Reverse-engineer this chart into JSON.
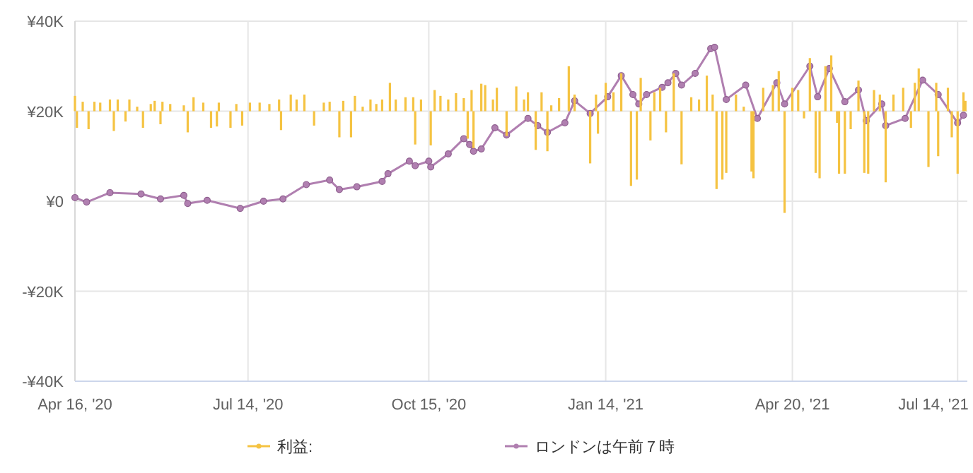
{
  "chart_data": {
    "type": "line",
    "xlim": [
      "2020-04-16",
      "2021-07-19"
    ],
    "xticks": [
      {
        "value": "2020-04-16",
        "label": "Apr 16, '20"
      },
      {
        "value": "2020-07-14",
        "label": "Jul 14, '20"
      },
      {
        "value": "2020-10-15",
        "label": "Oct 15, '20"
      },
      {
        "value": "2021-01-14",
        "label": "Jan 14, '21"
      },
      {
        "value": "2021-04-20",
        "label": "Apr 20, '21"
      },
      {
        "value": "2021-07-14",
        "label": "Jul 14, '21"
      }
    ],
    "ylim": [
      -40000,
      40000
    ],
    "yticks": [
      {
        "value": -40000,
        "label": "-¥40K"
      },
      {
        "value": -20000,
        "label": "-¥20K"
      },
      {
        "value": 0,
        "label": "¥0"
      },
      {
        "value": 20000,
        "label": "¥20K"
      },
      {
        "value": 40000,
        "label": "¥40K"
      }
    ],
    "grid": true,
    "legend": "bottom",
    "marker": "circle",
    "series": [
      {
        "name": "利益:",
        "type": "bar",
        "color": "#f5c342",
        "x": [
          "2020-04-16",
          "2020-04-17",
          "2020-04-20",
          "2020-04-23",
          "2020-04-26",
          "2020-04-29",
          "2020-05-04",
          "2020-05-06",
          "2020-05-08",
          "2020-05-12",
          "2020-05-14",
          "2020-05-18",
          "2020-05-21",
          "2020-05-25",
          "2020-05-27",
          "2020-05-30",
          "2020-05-31",
          "2020-06-04",
          "2020-06-11",
          "2020-06-13",
          "2020-06-16",
          "2020-06-21",
          "2020-06-25",
          "2020-06-28",
          "2020-06-29",
          "2020-07-05",
          "2020-07-08",
          "2020-07-11",
          "2020-07-15",
          "2020-07-20",
          "2020-07-25",
          "2020-07-30",
          "2020-07-31",
          "2020-08-05",
          "2020-08-08",
          "2020-08-12",
          "2020-08-17",
          "2020-08-22",
          "2020-08-25",
          "2020-08-30",
          "2020-09-01",
          "2020-09-05",
          "2020-09-07",
          "2020-09-11",
          "2020-09-15",
          "2020-09-18",
          "2020-09-21",
          "2020-09-25",
          "2020-09-28",
          "2020-10-03",
          "2020-10-07",
          "2020-10-08",
          "2020-10-11",
          "2020-10-16",
          "2020-10-18",
          "2020-10-21",
          "2020-10-25",
          "2020-10-29",
          "2020-11-02",
          "2020-11-04",
          "2020-11-06",
          "2020-11-07",
          "2020-11-11",
          "2020-11-13",
          "2020-11-17",
          "2020-11-19",
          "2020-11-24",
          "2020-11-29",
          "2020-12-03",
          "2020-12-05",
          "2020-12-09",
          "2020-12-12",
          "2020-12-15",
          "2020-12-17",
          "2020-12-21",
          "2020-12-26",
          "2020-12-29",
          "2021-01-06",
          "2021-01-09",
          "2021-01-10",
          "2021-01-14",
          "2021-01-18",
          "2021-01-22",
          "2021-01-27",
          "2021-01-30",
          "2021-02-01",
          "2021-02-06",
          "2021-02-08",
          "2021-02-11",
          "2021-02-14",
          "2021-02-18",
          "2021-02-22",
          "2021-02-27",
          "2021-03-03",
          "2021-03-07",
          "2021-03-10",
          "2021-03-12",
          "2021-03-15",
          "2021-03-17",
          "2021-03-22",
          "2021-03-26",
          "2021-03-30",
          "2021-03-31",
          "2021-04-05",
          "2021-04-10",
          "2021-04-13",
          "2021-04-16",
          "2021-04-20",
          "2021-04-23",
          "2021-04-26",
          "2021-04-29",
          "2021-05-02",
          "2021-05-04",
          "2021-05-07",
          "2021-05-10",
          "2021-05-13",
          "2021-05-14",
          "2021-05-17",
          "2021-05-20",
          "2021-05-24",
          "2021-05-27",
          "2021-05-29",
          "2021-06-01",
          "2021-06-04",
          "2021-06-07",
          "2021-06-11",
          "2021-06-16",
          "2021-06-20",
          "2021-06-22",
          "2021-06-24",
          "2021-06-29",
          "2021-07-03",
          "2021-07-04",
          "2021-07-09",
          "2021-07-11",
          "2021-07-14",
          "2021-07-17",
          "2021-07-18"
        ],
        "values": [
          3400,
          -3700,
          2100,
          -4000,
          2100,
          1900,
          2600,
          -4400,
          2600,
          -2300,
          2600,
          1000,
          -3700,
          1600,
          2300,
          -2900,
          2100,
          1600,
          1300,
          -4700,
          3100,
          1900,
          -3700,
          -3400,
          1900,
          -3700,
          1600,
          -3200,
          1900,
          1900,
          1600,
          2600,
          -4200,
          3700,
          2600,
          3700,
          -3200,
          1900,
          2100,
          -5800,
          2300,
          -5800,
          3400,
          1000,
          2600,
          1600,
          2600,
          6300,
          2600,
          3100,
          3100,
          -7400,
          2600,
          -7600,
          4700,
          3400,
          2600,
          4000,
          2900,
          -6100,
          4700,
          -8200,
          6100,
          5800,
          2600,
          5200,
          -5500,
          5500,
          2600,
          4200,
          -8600,
          4200,
          -8900,
          1300,
          2900,
          10000,
          3700,
          -11600,
          3700,
          -5000,
          6300,
          4200,
          8400,
          -16600,
          -15200,
          7400,
          -6500,
          4200,
          5200,
          -4700,
          8400,
          -11800,
          3100,
          2600,
          7900,
          3700,
          -17300,
          -15200,
          -13700,
          3700,
          1000,
          -13400,
          -14900,
          5200,
          5800,
          8900,
          -22600,
          5200,
          4700,
          -1600,
          11800,
          -13700,
          -14900,
          10000,
          12400,
          -2600,
          -13900,
          -13900,
          -4000,
          6800,
          -13700,
          -13900,
          4700,
          3700,
          -15800,
          3700,
          5200,
          -3700,
          6300,
          9500,
          -12400,
          6300,
          -10000,
          5200,
          -5800,
          -13900,
          4200,
          2300
        ],
        "base": [
          20000,
          20000,
          20000,
          20000,
          20000,
          20000,
          20000,
          20000,
          20000,
          20000,
          20000,
          20000,
          20000,
          20000,
          20000,
          20000,
          20000,
          20000,
          20000,
          20000,
          20000,
          20000,
          20000,
          20000,
          20000,
          20000,
          20000,
          20000,
          20000,
          20000,
          20000,
          20000,
          20000,
          20000,
          20000,
          20000,
          20000,
          20000,
          20000,
          20000,
          20000,
          20000,
          20000,
          20000,
          20000,
          20000,
          20000,
          20000,
          20000,
          20000,
          20000,
          20000,
          20000,
          20000,
          20000,
          20000,
          20000,
          20000,
          20000,
          20000,
          20000,
          20000,
          20000,
          20000,
          20000,
          20000,
          20000,
          20000,
          20000,
          20000,
          20000,
          20000,
          20000,
          20000,
          20000,
          20000,
          20000,
          20000,
          20000,
          20000,
          20000,
          20000,
          20000,
          20000,
          20000,
          20000,
          20000,
          20000,
          20000,
          20000,
          20000,
          20000,
          20000,
          20000,
          20000,
          20000,
          20000,
          20000,
          20000,
          20000,
          20000,
          20000,
          20000,
          20000,
          20000,
          20000,
          20000,
          20000,
          20000,
          20000,
          20000,
          20000,
          20000,
          20000,
          20000,
          20000,
          20000,
          20000,
          20000,
          20000,
          20000,
          20000,
          20000,
          20000,
          20000,
          20000,
          20000,
          20000,
          20000,
          20000,
          20000,
          20000,
          20000,
          20000,
          20000,
          20000,
          20000,
          20000
        ]
      },
      {
        "name": "ロンドンは午前７時",
        "color": "#b07fb0",
        "x": [
          "2020-04-16",
          "2020-04-22",
          "2020-05-04",
          "2020-05-20",
          "2020-05-30",
          "2020-06-11",
          "2020-06-13",
          "2020-06-23",
          "2020-07-10",
          "2020-07-22",
          "2020-08-01",
          "2020-08-13",
          "2020-08-25",
          "2020-08-30",
          "2020-09-08",
          "2020-09-21",
          "2020-09-24",
          "2020-10-05",
          "2020-10-08",
          "2020-10-15",
          "2020-10-16",
          "2020-10-25",
          "2020-11-02",
          "2020-11-05",
          "2020-11-07",
          "2020-11-11",
          "2020-11-18",
          "2020-11-24",
          "2020-12-05",
          "2020-12-10",
          "2020-12-15",
          "2020-12-24",
          "2020-12-29",
          "2021-01-06",
          "2021-01-15",
          "2021-01-22",
          "2021-01-28",
          "2021-01-31",
          "2021-02-04",
          "2021-02-12",
          "2021-02-15",
          "2021-02-19",
          "2021-02-22",
          "2021-03-01",
          "2021-03-09",
          "2021-03-11",
          "2021-03-17",
          "2021-03-27",
          "2021-04-02",
          "2021-04-12",
          "2021-04-16",
          "2021-04-29",
          "2021-05-03",
          "2021-05-09",
          "2021-05-17",
          "2021-05-24",
          "2021-05-28",
          "2021-06-05",
          "2021-06-07",
          "2021-06-17",
          "2021-06-26",
          "2021-07-04",
          "2021-07-14",
          "2021-07-17"
        ],
        "values": [
          800,
          -200,
          1900,
          1600,
          500,
          1300,
          -500,
          200,
          -1600,
          0,
          500,
          3700,
          4700,
          2600,
          3200,
          4400,
          6100,
          8900,
          7900,
          8900,
          7600,
          10500,
          13900,
          12600,
          11100,
          11600,
          16300,
          14700,
          18400,
          16800,
          15300,
          17400,
          22300,
          19500,
          23200,
          27900,
          23700,
          21600,
          23700,
          25300,
          26300,
          28400,
          25800,
          28400,
          33900,
          34200,
          22600,
          25800,
          18400,
          26300,
          21600,
          30000,
          23200,
          29500,
          22100,
          24700,
          17900,
          21600,
          16800,
          18400,
          26900,
          23700,
          17400,
          19100
        ]
      }
    ]
  }
}
